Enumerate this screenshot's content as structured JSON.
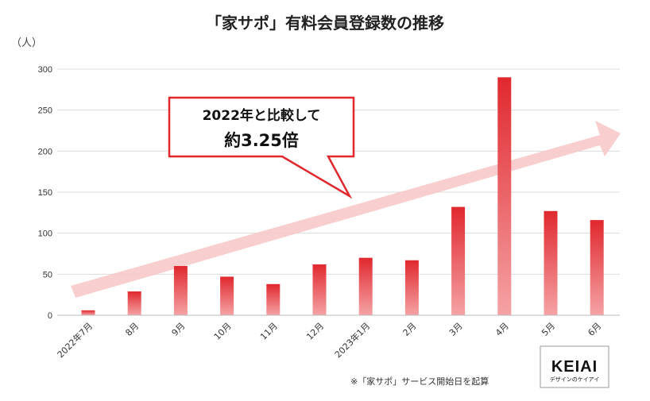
{
  "chart_data": {
    "type": "bar",
    "title": "「家サポ」有料会員登録数の推移",
    "ylabel": "（人）",
    "xlabel": "",
    "ylim": [
      0,
      300
    ],
    "yticks": [
      0,
      50,
      100,
      150,
      200,
      250,
      300
    ],
    "categories": [
      "2022年7月",
      "8月",
      "9月",
      "10月",
      "11月",
      "12月",
      "2023年1月",
      "2月",
      "3月",
      "4月",
      "5月",
      "6月"
    ],
    "values": [
      6,
      29,
      60,
      47,
      38,
      62,
      70,
      67,
      132,
      290,
      127,
      116
    ],
    "grid": true,
    "colors": {
      "bar_top": "#e0282e",
      "bar_bottom": "#f5a3a5",
      "arrow": "#f7c5c6",
      "callout_border": "#e0282e"
    },
    "annotation": {
      "line1": "2022年と比較して",
      "line2": "約3.25倍"
    },
    "note": "※「家サポ」サービス開始日を起算"
  },
  "logo": {
    "main": "KEIAI",
    "sub": "デザインのケイアイ"
  }
}
